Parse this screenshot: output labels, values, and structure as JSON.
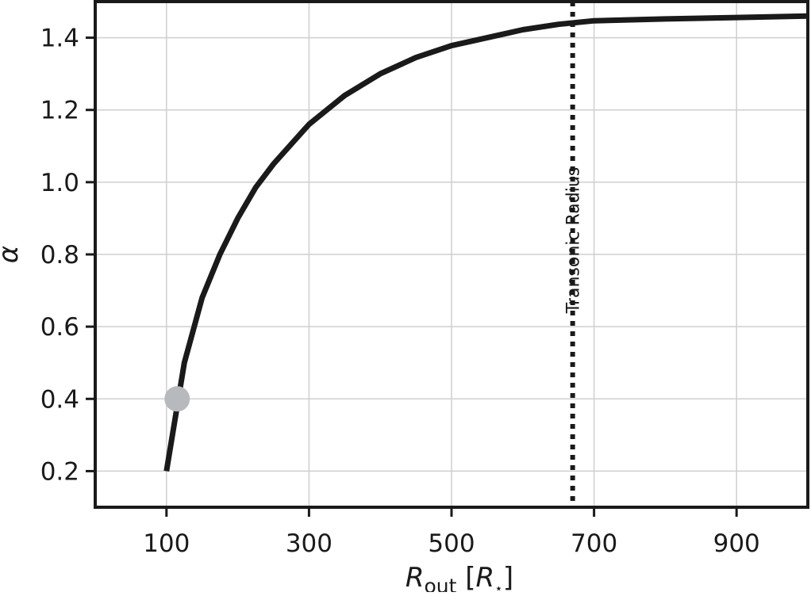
{
  "chart_data": {
    "type": "line",
    "xlabel_main": "R",
    "xlabel_sub": "out",
    "xlabel_unit_open": " [",
    "xlabel_unit_main": "R",
    "xlabel_unit_sub": "⋆",
    "xlabel_unit_close": "]",
    "ylabel": "α",
    "xlim": [
      0,
      1000
    ],
    "ylim": [
      0.1,
      1.5
    ],
    "grid": true,
    "x_ticks": [
      100,
      300,
      500,
      700,
      900
    ],
    "x_tick_labels": [
      "100",
      "300",
      "500",
      "700",
      "900"
    ],
    "y_ticks": [
      0.2,
      0.4,
      0.6,
      0.8,
      1.0,
      1.2,
      1.4
    ],
    "y_tick_labels": [
      "0.2",
      "0.4",
      "0.6",
      "0.8",
      "1.0",
      "1.2",
      "1.4"
    ],
    "series": [
      {
        "color": "#1a1a1a",
        "style": "solid",
        "x": [
          100,
          125,
          150,
          175,
          200,
          225,
          250,
          300,
          350,
          400,
          450,
          500,
          550,
          600,
          650,
          700,
          800,
          900,
          1000
        ],
        "y": [
          0.2,
          0.5,
          0.68,
          0.8,
          0.9,
          0.985,
          1.05,
          1.16,
          1.24,
          1.3,
          1.345,
          1.378,
          1.4,
          1.422,
          1.437,
          1.447,
          1.452,
          1.456,
          1.46
        ]
      }
    ],
    "highlight_point": {
      "x": 115,
      "y": 0.4,
      "color": "#b8b9bd"
    },
    "vertical_line": {
      "x": 670,
      "style": "dotted",
      "color": "#1a1a1a",
      "label": "Transonic Radius"
    }
  }
}
